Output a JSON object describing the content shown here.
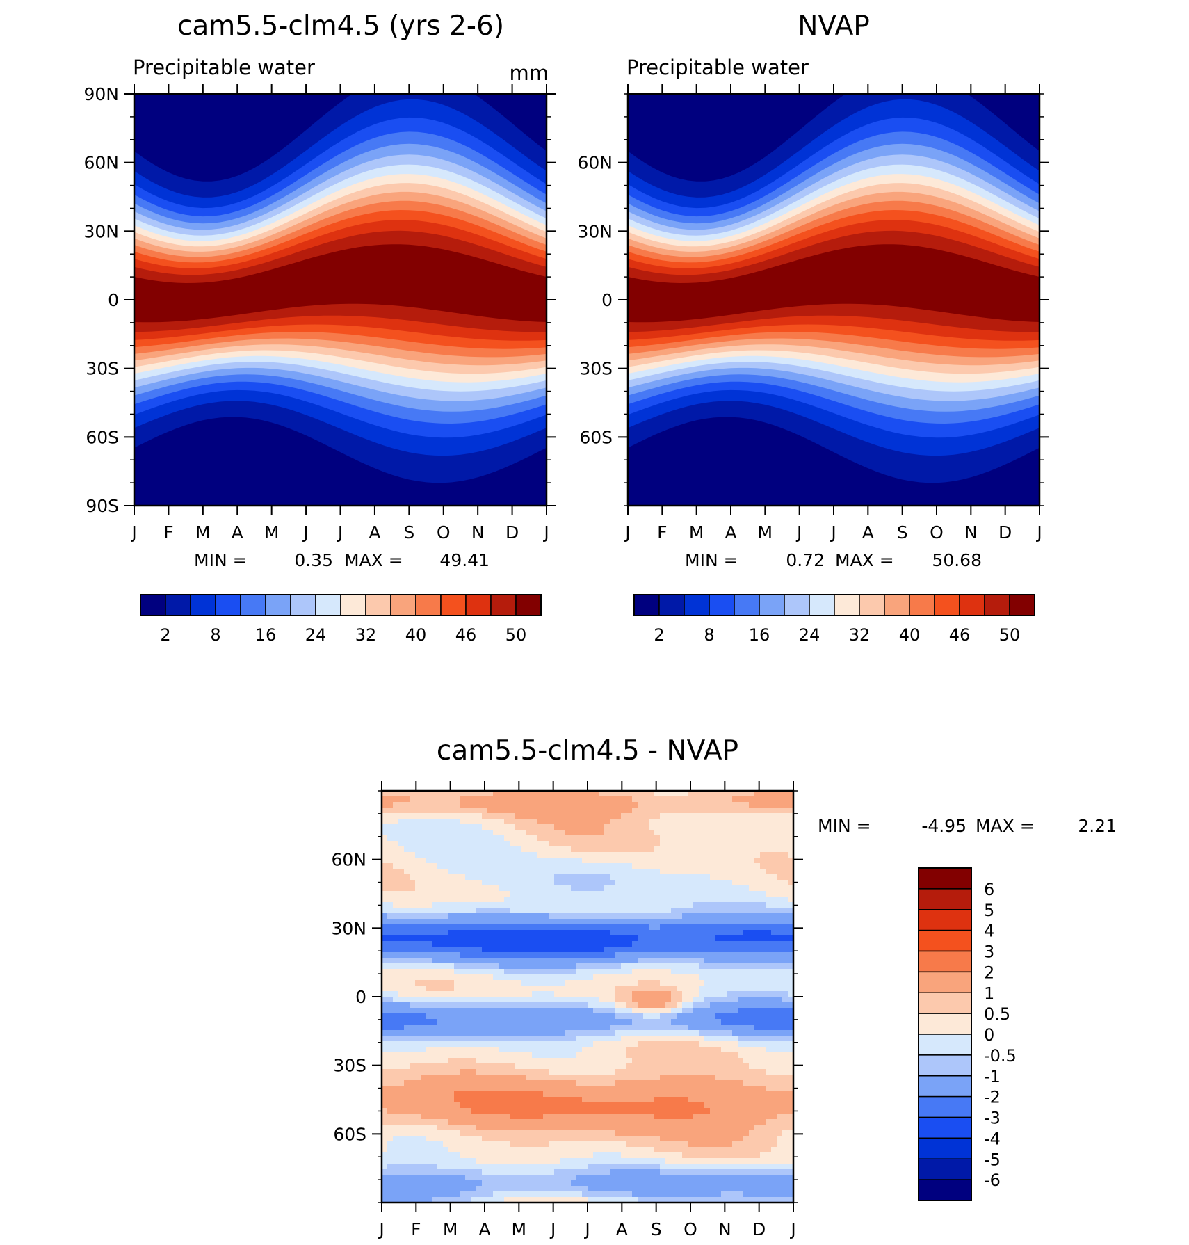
{
  "chart_data": [
    {
      "type": "heatmap",
      "title": "cam5.5-clm4.5 (yrs 2-6)",
      "subtitle": "Precipitable water",
      "units": "mm",
      "x_tick_labels": [
        "J",
        "F",
        "M",
        "A",
        "M",
        "J",
        "J",
        "A",
        "S",
        "O",
        "N",
        "D",
        "J"
      ],
      "y_tick_labels": [
        "90N",
        "60N",
        "30N",
        "0",
        "30S",
        "60S",
        "90S"
      ],
      "ylim": [
        -90,
        90
      ],
      "min_label": "MIN =",
      "min_value": "0.35",
      "max_label": "MAX =",
      "max_value": "49.41",
      "colorbar": {
        "orientation": "horizontal",
        "tick_labels": [
          "2",
          "8",
          "16",
          "24",
          "32",
          "40",
          "46",
          "50"
        ],
        "colors": [
          "#00007f",
          "#0019a8",
          "#0033d6",
          "#1a4ef2",
          "#4779f5",
          "#7aa3f7",
          "#adc6fa",
          "#d6e8fc",
          "#fde9d8",
          "#fcc9ad",
          "#f9a47c",
          "#f77a4a",
          "#f4511e",
          "#de3210",
          "#b51c0c",
          "#820000"
        ]
      }
    },
    {
      "type": "heatmap",
      "title": "NVAP",
      "subtitle": "Precipitable water",
      "x_tick_labels": [
        "J",
        "F",
        "M",
        "A",
        "M",
        "J",
        "J",
        "A",
        "S",
        "O",
        "N",
        "D",
        "J"
      ],
      "y_tick_labels": [
        "60N",
        "30N",
        "0",
        "30S",
        "60S"
      ],
      "ylim": [
        -90,
        90
      ],
      "min_label": "MIN =",
      "min_value": "0.72",
      "max_label": "MAX =",
      "max_value": "50.68",
      "colorbar": {
        "orientation": "horizontal",
        "tick_labels": [
          "2",
          "8",
          "16",
          "24",
          "32",
          "40",
          "46",
          "50"
        ],
        "colors": [
          "#00007f",
          "#0019a8",
          "#0033d6",
          "#1a4ef2",
          "#4779f5",
          "#7aa3f7",
          "#adc6fa",
          "#d6e8fc",
          "#fde9d8",
          "#fcc9ad",
          "#f9a47c",
          "#f77a4a",
          "#f4511e",
          "#de3210",
          "#b51c0c",
          "#820000"
        ]
      }
    },
    {
      "type": "heatmap",
      "title": "cam5.5-clm4.5 - NVAP",
      "x_tick_labels": [
        "J",
        "F",
        "M",
        "A",
        "M",
        "J",
        "J",
        "A",
        "S",
        "O",
        "N",
        "D",
        "J"
      ],
      "y_tick_labels": [
        "60N",
        "30N",
        "0",
        "30S",
        "60S"
      ],
      "ylim": [
        -90,
        90
      ],
      "min_label": "MIN =",
      "min_value": "-4.95",
      "max_label": "MAX =",
      "max_value": "2.21",
      "colorbar": {
        "orientation": "vertical",
        "tick_labels": [
          "6",
          "5",
          "4",
          "3",
          "2",
          "1",
          "0.5",
          "0",
          "-0.5",
          "-1",
          "-2",
          "-3",
          "-4",
          "-5",
          "-6"
        ],
        "colors": [
          "#820000",
          "#b51c0c",
          "#de3210",
          "#f4511e",
          "#f77a4a",
          "#f9a47c",
          "#fcc9ad",
          "#fde9d8",
          "#d6e8fc",
          "#adc6fa",
          "#7aa3f7",
          "#4779f5",
          "#1a4ef2",
          "#0033d6",
          "#0019a8",
          "#00007f"
        ]
      }
    }
  ]
}
